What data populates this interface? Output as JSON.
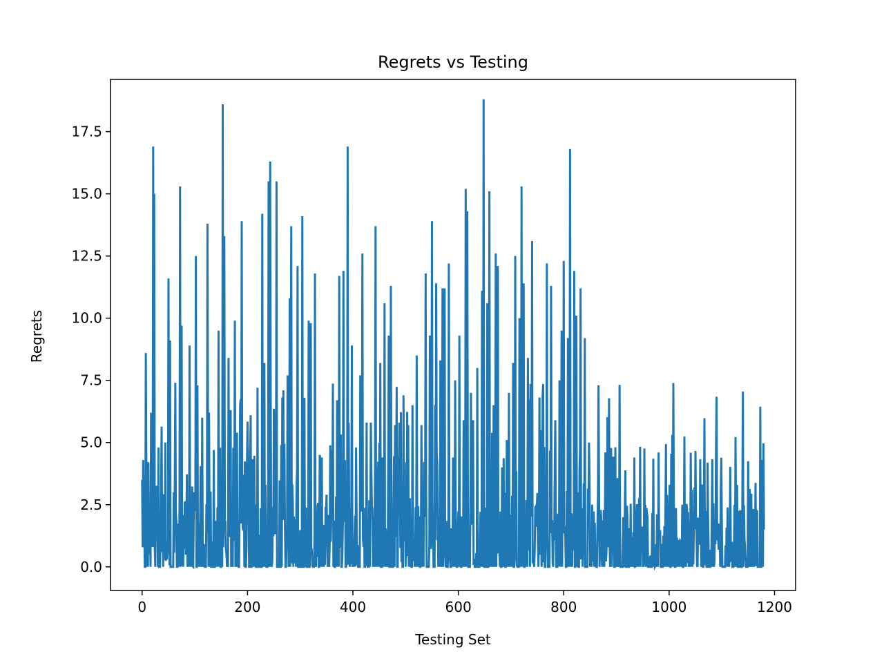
{
  "chart_data": {
    "type": "line",
    "title": "Regrets vs Testing",
    "xlabel": "Testing Set",
    "ylabel": "Regrets",
    "xlim": [
      -60,
      1240
    ],
    "ylim": [
      -0.95,
      19.6
    ],
    "xticks": [
      0,
      200,
      400,
      600,
      800,
      1000,
      1200
    ],
    "xtick_labels": [
      "0",
      "200",
      "400",
      "600",
      "800",
      "1000",
      "1200"
    ],
    "yticks": [
      0.0,
      2.5,
      5.0,
      7.5,
      10.0,
      12.5,
      15.0,
      17.5
    ],
    "ytick_labels": [
      "0.0",
      "2.5",
      "5.0",
      "7.5",
      "10.0",
      "12.5",
      "15.0",
      "17.5"
    ],
    "grid": false,
    "series_color": "#1f77b4",
    "series": [
      {
        "n": 1180,
        "peaks": [
          [
            0,
            3.5
          ],
          [
            2,
            4.3
          ],
          [
            5,
            0.0
          ],
          [
            7,
            8.6
          ],
          [
            9,
            0.0
          ],
          [
            12,
            4.2
          ],
          [
            15,
            1.5
          ],
          [
            17,
            6.2
          ],
          [
            20,
            0.8
          ],
          [
            21,
            16.9
          ],
          [
            23,
            15.0
          ],
          [
            25,
            0.0
          ],
          [
            28,
            1.2
          ],
          [
            31,
            4.8
          ],
          [
            34,
            0.0
          ],
          [
            36,
            3.1
          ],
          [
            40,
            0.0
          ],
          [
            44,
            5.0
          ],
          [
            47,
            0.3
          ],
          [
            50,
            11.6
          ],
          [
            53,
            9.1
          ],
          [
            56,
            0.0
          ],
          [
            60,
            3.0
          ],
          [
            63,
            7.4
          ],
          [
            67,
            0.0
          ],
          [
            72,
            15.3
          ],
          [
            75,
            9.7
          ],
          [
            78,
            0.0
          ],
          [
            82,
            2.6
          ],
          [
            86,
            0.0
          ],
          [
            90,
            8.9
          ],
          [
            94,
            0.1
          ],
          [
            99,
            3.0
          ],
          [
            102,
            12.5
          ],
          [
            105,
            7.3
          ],
          [
            109,
            0.0
          ],
          [
            114,
            6.0
          ],
          [
            119,
            0.0
          ],
          [
            124,
            13.8
          ],
          [
            127,
            6.2
          ],
          [
            131,
            0.0
          ],
          [
            136,
            4.7
          ],
          [
            140,
            0.0
          ],
          [
            145,
            9.5
          ],
          [
            149,
            0.0
          ],
          [
            153,
            18.6
          ],
          [
            156,
            13.3
          ],
          [
            160,
            0.5
          ],
          [
            164,
            8.4
          ],
          [
            168,
            6.3
          ],
          [
            172,
            0.0
          ],
          [
            176,
            9.9
          ],
          [
            180,
            5.4
          ],
          [
            184,
            0.0
          ],
          [
            189,
            13.9
          ],
          [
            193,
            3.7
          ],
          [
            197,
            0.0
          ],
          [
            201,
            4.3
          ],
          [
            206,
            6.1
          ],
          [
            210,
            0.0
          ],
          [
            215,
            2.5
          ],
          [
            219,
            7.2
          ],
          [
            223,
            0.0
          ],
          [
            228,
            14.2
          ],
          [
            232,
            8.2
          ],
          [
            236,
            0.0
          ],
          [
            240,
            15.5
          ],
          [
            243,
            16.3
          ],
          [
            247,
            0.2
          ],
          [
            251,
            5.9
          ],
          [
            255,
            15.5
          ],
          [
            259,
            0.0
          ],
          [
            264,
            4.9
          ],
          [
            268,
            7.1
          ],
          [
            272,
            0.0
          ],
          [
            276,
            7.7
          ],
          [
            280,
            10.8
          ],
          [
            283,
            13.7
          ],
          [
            287,
            0.0
          ],
          [
            291,
            1.9
          ],
          [
            295,
            12.1
          ],
          [
            299,
            0.0
          ],
          [
            304,
            14.1
          ],
          [
            308,
            6.8
          ],
          [
            312,
            0.0
          ],
          [
            316,
            9.9
          ],
          [
            320,
            9.8
          ],
          [
            324,
            0.0
          ],
          [
            328,
            11.8
          ],
          [
            332,
            0.4
          ],
          [
            337,
            4.5
          ],
          [
            341,
            4.4
          ],
          [
            345,
            0.0
          ],
          [
            350,
            2.9
          ],
          [
            355,
            0.0
          ],
          [
            360,
            4.7
          ],
          [
            365,
            0.0
          ],
          [
            370,
            6.7
          ],
          [
            374,
            11.7
          ],
          [
            378,
            0.0
          ],
          [
            382,
            11.9
          ],
          [
            386,
            0.0
          ],
          [
            390,
            16.9
          ],
          [
            394,
            0.0
          ],
          [
            398,
            8.9
          ],
          [
            402,
            0.3
          ],
          [
            406,
            4.8
          ],
          [
            410,
            0.0
          ],
          [
            414,
            7.7
          ],
          [
            418,
            12.6
          ],
          [
            422,
            0.0
          ],
          [
            426,
            5.8
          ],
          [
            430,
            0.0
          ],
          [
            434,
            5.8
          ],
          [
            438,
            0.0
          ],
          [
            443,
            13.7
          ],
          [
            447,
            0.0
          ],
          [
            452,
            8.2
          ],
          [
            456,
            4.4
          ],
          [
            460,
            10.6
          ],
          [
            464,
            0.0
          ],
          [
            468,
            9.3
          ],
          [
            472,
            11.3
          ],
          [
            476,
            0.0
          ],
          [
            480,
            5.7
          ],
          [
            484,
            0.0
          ],
          [
            488,
            5.8
          ],
          [
            492,
            0.2
          ],
          [
            496,
            6.9
          ],
          [
            500,
            0.0
          ],
          [
            505,
            5.7
          ],
          [
            509,
            0.0
          ],
          [
            513,
            6.5
          ],
          [
            517,
            0.0
          ],
          [
            521,
            8.5
          ],
          [
            525,
            0.0
          ],
          [
            530,
            5.7
          ],
          [
            534,
            0.0
          ],
          [
            538,
            11.8
          ],
          [
            542,
            0.0
          ],
          [
            546,
            9.3
          ],
          [
            550,
            13.9
          ],
          [
            554,
            0.0
          ],
          [
            558,
            11.4
          ],
          [
            562,
            0.0
          ],
          [
            566,
            8.3
          ],
          [
            570,
            11.2
          ],
          [
            574,
            11.2
          ],
          [
            578,
            0.0
          ],
          [
            582,
            12.2
          ],
          [
            586,
            0.0
          ],
          [
            590,
            4.4
          ],
          [
            594,
            7.5
          ],
          [
            598,
            0.0
          ],
          [
            602,
            9.3
          ],
          [
            606,
            0.0
          ],
          [
            610,
            5.9
          ],
          [
            614,
            15.2
          ],
          [
            617,
            14.3
          ],
          [
            620,
            0.0
          ],
          [
            624,
            7.0
          ],
          [
            628,
            5.9
          ],
          [
            632,
            0.0
          ],
          [
            636,
            8.0
          ],
          [
            640,
            0.0
          ],
          [
            645,
            11.1
          ],
          [
            648,
            18.8
          ],
          [
            651,
            0.0
          ],
          [
            655,
            10.6
          ],
          [
            659,
            15.1
          ],
          [
            663,
            0.0
          ],
          [
            667,
            6.5
          ],
          [
            671,
            12.6
          ],
          [
            675,
            12.1
          ],
          [
            679,
            0.0
          ],
          [
            683,
            4.0
          ],
          [
            687,
            0.0
          ],
          [
            692,
            5.1
          ],
          [
            696,
            7.0
          ],
          [
            700,
            0.0
          ],
          [
            704,
            8.2
          ],
          [
            708,
            12.5
          ],
          [
            712,
            0.0
          ],
          [
            716,
            10.0
          ],
          [
            720,
            15.3
          ],
          [
            724,
            11.4
          ],
          [
            728,
            0.0
          ],
          [
            732,
            8.4
          ],
          [
            736,
            0.0
          ],
          [
            740,
            13.1
          ],
          [
            744,
            0.0
          ],
          [
            748,
            2.5
          ],
          [
            752,
            0.0
          ],
          [
            756,
            5.5
          ],
          [
            760,
            6.9
          ],
          [
            764,
            0.0
          ],
          [
            768,
            12.2
          ],
          [
            772,
            0.0
          ],
          [
            776,
            11.3
          ],
          [
            780,
            0.0
          ],
          [
            784,
            5.9
          ],
          [
            788,
            0.0
          ],
          [
            792,
            7.5
          ],
          [
            796,
            9.5
          ],
          [
            800,
            12.3
          ],
          [
            804,
            0.0
          ],
          [
            808,
            9.2
          ],
          [
            812,
            16.8
          ],
          [
            816,
            0.0
          ],
          [
            820,
            11.9
          ],
          [
            824,
            10.1
          ],
          [
            828,
            0.0
          ],
          [
            832,
            11.2
          ],
          [
            836,
            0.0
          ],
          [
            840,
            9.2
          ],
          [
            844,
            0.0
          ],
          [
            848,
            5.0
          ],
          [
            1180,
            1.5
          ]
        ]
      }
    ]
  }
}
